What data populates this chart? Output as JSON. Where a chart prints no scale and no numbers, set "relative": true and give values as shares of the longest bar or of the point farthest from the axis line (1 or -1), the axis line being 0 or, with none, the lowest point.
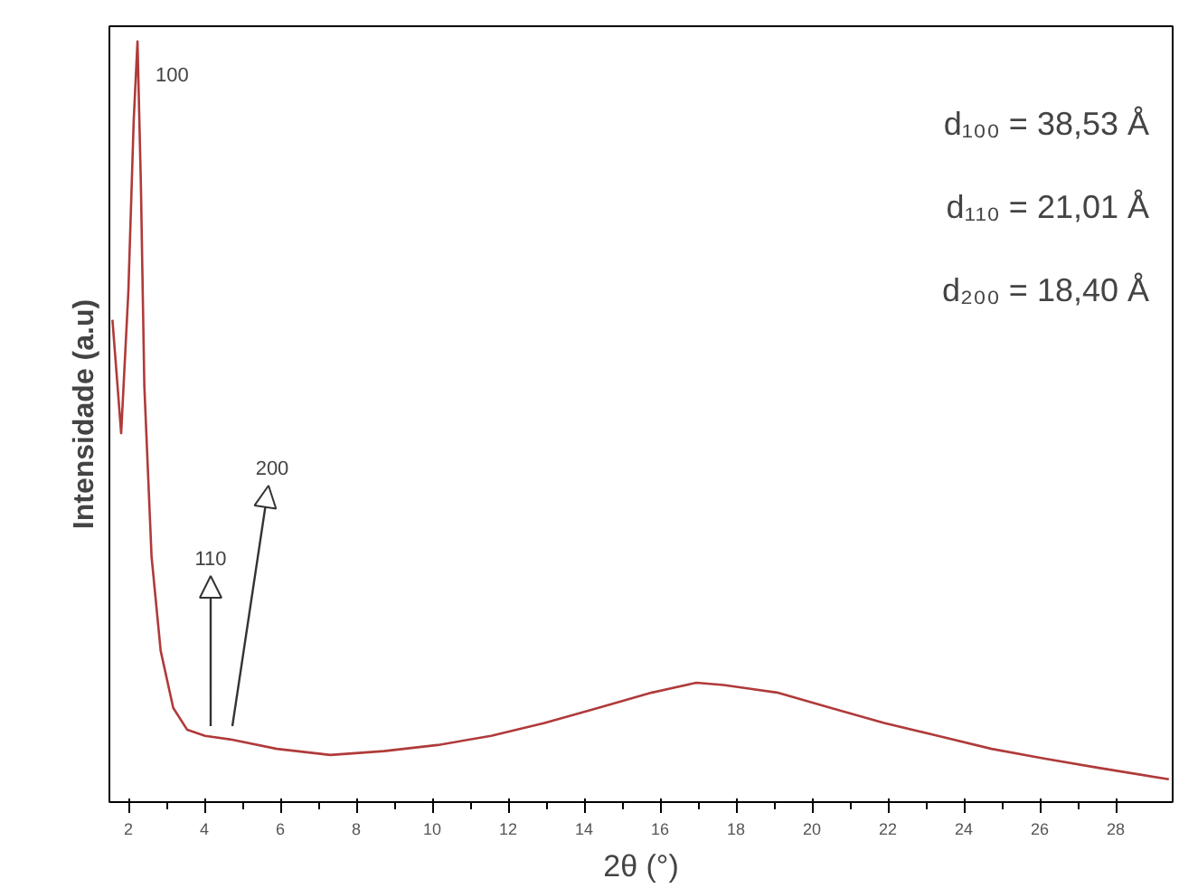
{
  "chart_data": {
    "type": "line",
    "relative": true,
    "xlabel": "2θ (°)",
    "ylabel": "Intensidade (a.u)",
    "xlim": [
      1.5,
      29.5
    ],
    "xticks": [
      2,
      4,
      6,
      8,
      10,
      12,
      14,
      16,
      18,
      20,
      22,
      24,
      26,
      28
    ],
    "grid": false,
    "marker": "none",
    "line_style": "solid",
    "series": [
      {
        "color": "#b03a3a",
        "x": [
          1.58,
          1.81,
          2.0,
          2.14,
          2.24,
          2.33,
          2.42,
          2.61,
          2.85,
          3.18,
          3.55,
          4.02,
          4.73,
          5.91,
          7.32,
          8.73,
          10.14,
          11.55,
          12.96,
          14.38,
          15.79,
          16.96,
          17.67,
          19.08,
          20.49,
          21.9,
          23.32,
          24.73,
          26.14,
          27.55,
          29.4
        ],
        "values": [
          0.634,
          0.485,
          0.672,
          0.896,
          1.0,
          0.81,
          0.547,
          0.323,
          0.199,
          0.124,
          0.095,
          0.087,
          0.082,
          0.07,
          0.062,
          0.067,
          0.075,
          0.087,
          0.104,
          0.124,
          0.144,
          0.157,
          0.154,
          0.144,
          0.124,
          0.104,
          0.087,
          0.07,
          0.057,
          0.045,
          0.03
        ]
      }
    ],
    "annotations": [
      {
        "text": "100",
        "x": 2.24,
        "y": 1.0
      },
      "110",
      "200",
      "d₁₀₀ = 38,53 Å",
      "d₁₁₀ = 21,01 Å",
      "d₂₀₀ = 18,40 Å"
    ]
  }
}
